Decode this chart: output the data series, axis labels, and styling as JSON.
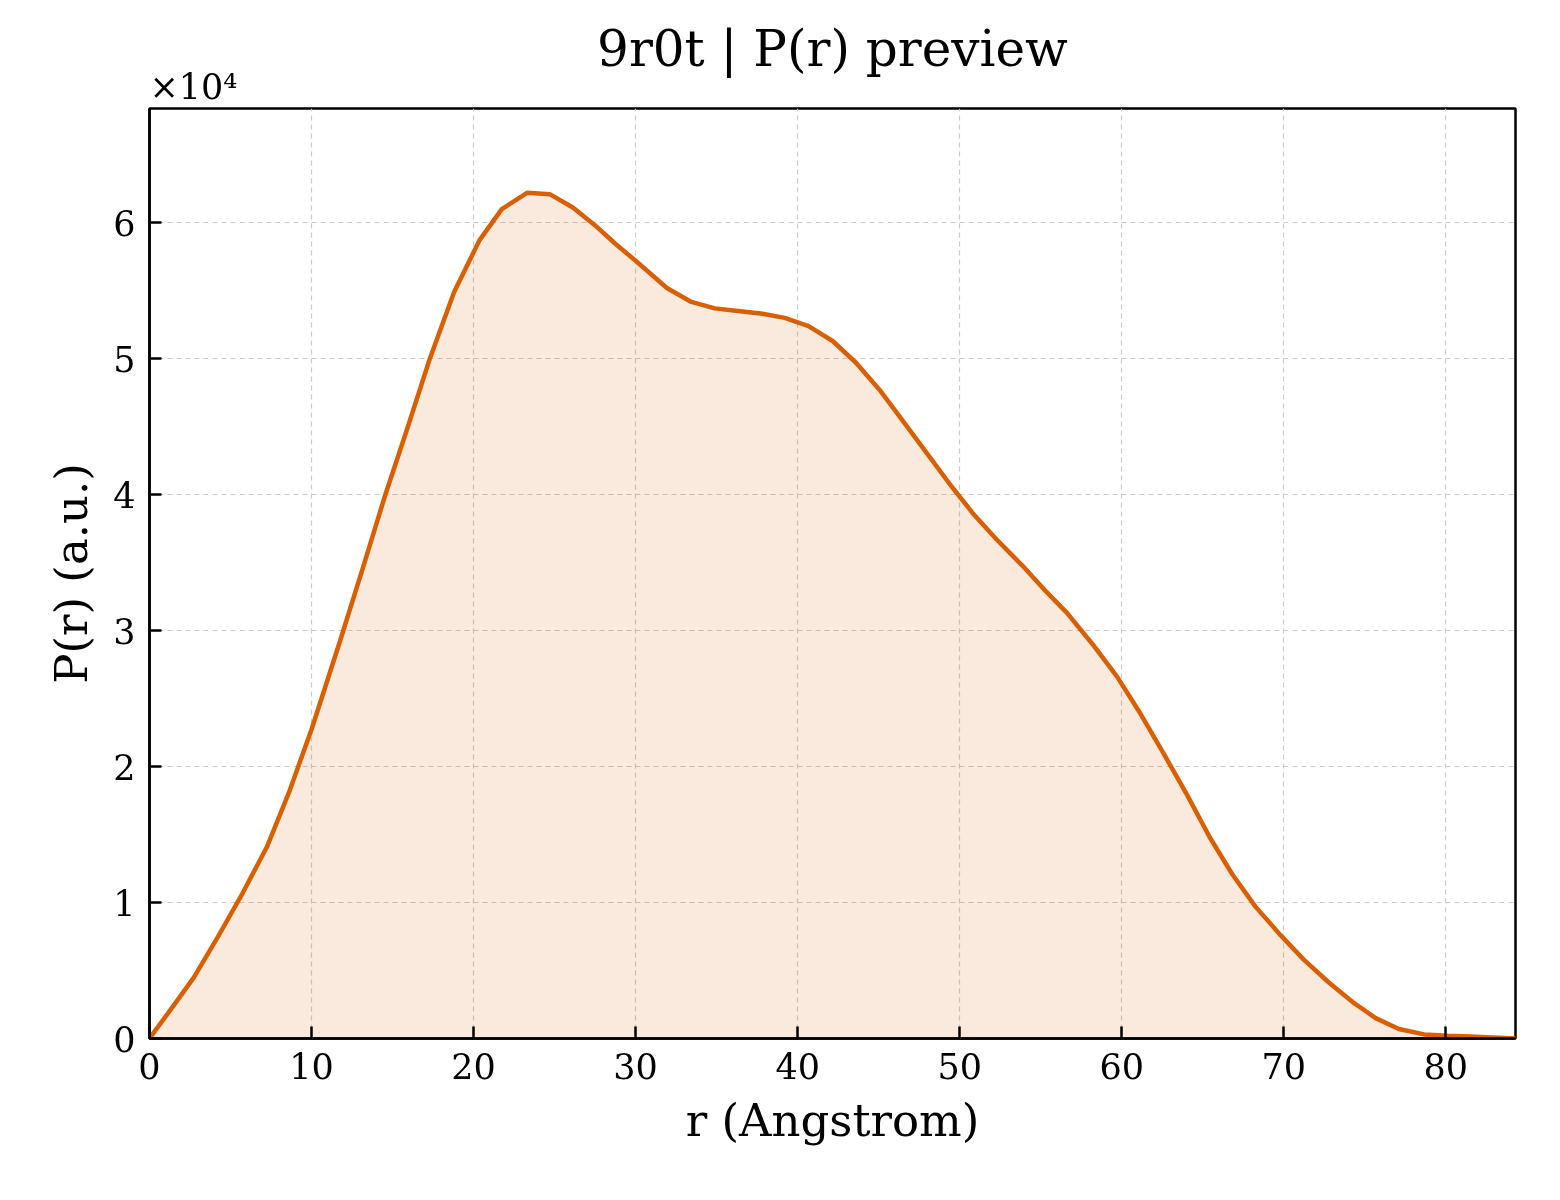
{
  "chart_data": {
    "type": "area",
    "title": "9r0t | P(r) preview",
    "xlabel": "r (Angstrom)",
    "ylabel": "P(r) (a.u.)",
    "annotations": [
      "×10⁴"
    ],
    "series": [
      {
        "color": "#d95f02",
        "x": [
          0,
          1.35,
          2.74,
          4.23,
          5.75,
          7.25,
          8.64,
          10.02,
          11.75,
          13.14,
          14.53,
          15.92,
          17.3,
          18.8,
          20.36,
          21.74,
          23.3,
          24.7,
          26.15,
          27.5,
          28.8,
          30.0,
          31.93,
          33.39,
          34.88,
          36.33,
          37.83,
          39.2,
          40.67,
          42.16,
          43.6,
          45.06,
          46.57,
          48.06,
          49.5,
          50.9,
          52.28,
          53.85,
          55.23,
          56.62,
          58.2,
          59.72,
          61.15,
          62.66,
          64.04,
          65.43,
          66.81,
          68.25,
          69.8,
          71.23,
          72.8,
          74.23,
          75.67,
          77.1,
          78.66,
          80.1,
          81.5,
          84.3
        ],
        "values": [
          0,
          0.22,
          0.45,
          0.75,
          1.07,
          1.41,
          1.82,
          2.28,
          2.92,
          3.45,
          3.99,
          4.49,
          5.0,
          5.49,
          5.87,
          6.1,
          6.22,
          6.21,
          6.11,
          5.98,
          5.84,
          5.72,
          5.52,
          5.42,
          5.37,
          5.35,
          5.33,
          5.3,
          5.24,
          5.13,
          4.97,
          4.77,
          4.53,
          4.29,
          4.06,
          3.85,
          3.67,
          3.48,
          3.3,
          3.13,
          2.9,
          2.66,
          2.39,
          2.08,
          1.79,
          1.48,
          1.21,
          0.97,
          0.76,
          0.58,
          0.41,
          0.27,
          0.15,
          0.07,
          0.03,
          0.02,
          0.015,
          0
        ]
      }
    ],
    "xlim": [
      0,
      84.3
    ],
    "ylim": [
      0,
      6.84
    ],
    "xticks": [
      0,
      10,
      20,
      30,
      40,
      50,
      60,
      70,
      80
    ],
    "yticks": [
      0,
      1,
      2,
      3,
      4,
      5,
      6
    ],
    "grid": true
  }
}
